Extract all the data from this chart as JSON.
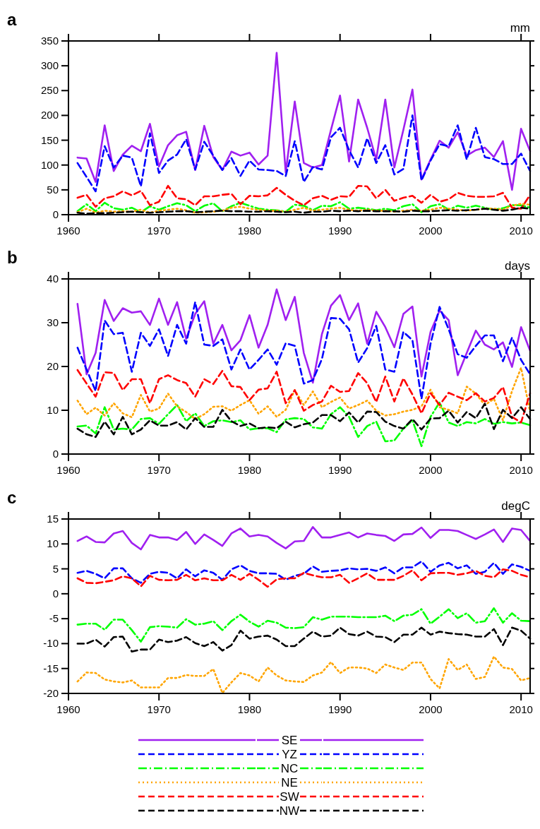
{
  "chart_data": [
    {
      "type": "line",
      "title": "a",
      "ylabel": "mm",
      "xlim": [
        1960,
        2011
      ],
      "xticks": [
        1960,
        1970,
        1980,
        1990,
        2000,
        2010
      ],
      "ylim": [
        0,
        350
      ],
      "yticks": [
        0,
        50,
        100,
        150,
        200,
        250,
        300,
        350
      ],
      "x": [
        1961,
        1962,
        1963,
        1964,
        1965,
        1966,
        1967,
        1968,
        1969,
        1970,
        1971,
        1972,
        1973,
        1974,
        1975,
        1976,
        1977,
        1978,
        1979,
        1980,
        1981,
        1982,
        1983,
        1984,
        1985,
        1986,
        1987,
        1988,
        1989,
        1990,
        1991,
        1992,
        1993,
        1994,
        1995,
        1996,
        1997,
        1998,
        1999,
        2000,
        2001,
        2002,
        2003,
        2004,
        2005,
        2006,
        2007,
        2008,
        2009,
        2010,
        2011
      ],
      "series": [
        {
          "color": "#a020f0",
          "line_style": "solid",
          "values": [
            115,
            113,
            66,
            180,
            88,
            121,
            139,
            128,
            183,
            97,
            140,
            160,
            167,
            90,
            179,
            116,
            90,
            127,
            119,
            125,
            101,
            119,
            326,
            85,
            228,
            104,
            95,
            100,
            171,
            240,
            107,
            232,
            175,
            111,
            232,
            95,
            171,
            252,
            71,
            111,
            149,
            135,
            166,
            119,
            130,
            135,
            116,
            148,
            50,
            173,
            128
          ]
        },
        {
          "color": "#0000ff",
          "line_style": "dashed",
          "values": [
            104,
            76,
            47,
            138,
            95,
            119,
            115,
            57,
            164,
            84,
            109,
            121,
            152,
            91,
            147,
            119,
            90,
            114,
            78,
            109,
            91,
            90,
            88,
            78,
            148,
            66,
            96,
            91,
            156,
            175,
            130,
            95,
            154,
            104,
            140,
            81,
            92,
            200,
            69,
            109,
            142,
            138,
            180,
            111,
            175,
            116,
            112,
            102,
            102,
            123,
            88
          ]
        },
        {
          "color": "#00ff00",
          "line_style": "dashdot",
          "values": [
            7,
            21,
            7,
            24,
            13,
            10,
            14,
            5,
            17,
            10,
            17,
            23,
            19,
            7,
            18,
            23,
            7,
            17,
            24,
            18,
            12,
            10,
            9,
            6,
            20,
            18,
            9,
            18,
            17,
            25,
            12,
            14,
            12,
            9,
            12,
            9,
            17,
            21,
            5,
            17,
            21,
            10,
            18,
            14,
            18,
            14,
            10,
            13,
            19,
            19,
            14
          ]
        },
        {
          "color": "#ffa500",
          "line_style": "dotted",
          "values": [
            5,
            12,
            4,
            8,
            6,
            7,
            6,
            10,
            4,
            8,
            10,
            12,
            9,
            4,
            5,
            6,
            8,
            14,
            16,
            12,
            10,
            8,
            8,
            6,
            10,
            14,
            8,
            10,
            12,
            14,
            10,
            8,
            10,
            8,
            8,
            6,
            8,
            10,
            8,
            10,
            14,
            12,
            10,
            8,
            10,
            12,
            12,
            10,
            18,
            22,
            20
          ]
        },
        {
          "color": "#ff0000",
          "line_style": "dashed",
          "values": [
            34,
            40,
            16,
            33,
            37,
            47,
            39,
            48,
            19,
            26,
            58,
            33,
            31,
            19,
            37,
            37,
            40,
            42,
            21,
            38,
            37,
            39,
            54,
            40,
            28,
            19,
            33,
            38,
            30,
            37,
            36,
            58,
            57,
            33,
            50,
            28,
            34,
            38,
            24,
            40,
            26,
            31,
            44,
            38,
            36,
            36,
            37,
            44,
            14,
            12,
            40
          ]
        },
        {
          "color": "#000000",
          "line_style": "dashed",
          "values": [
            4,
            2,
            3,
            3,
            4,
            5,
            6,
            5,
            4,
            5,
            6,
            7,
            7,
            5,
            6,
            7,
            8,
            7,
            7,
            6,
            6,
            7,
            6,
            5,
            6,
            4,
            6,
            6,
            8,
            7,
            8,
            7,
            8,
            7,
            7,
            7,
            6,
            8,
            7,
            7,
            8,
            9,
            8,
            9,
            10,
            12,
            10,
            8,
            10,
            14,
            12
          ]
        }
      ]
    },
    {
      "type": "line",
      "title": "b",
      "ylabel": "days",
      "xlim": [
        1960,
        2011
      ],
      "xticks": [
        1960,
        1970,
        1980,
        1990,
        2000,
        2010
      ],
      "ylim": [
        0,
        40
      ],
      "yticks": [
        0,
        10,
        20,
        30,
        40
      ],
      "x": [
        1961,
        1962,
        1963,
        1964,
        1965,
        1966,
        1967,
        1968,
        1969,
        1970,
        1971,
        1972,
        1973,
        1974,
        1975,
        1976,
        1977,
        1978,
        1979,
        1980,
        1981,
        1982,
        1983,
        1984,
        1985,
        1986,
        1987,
        1988,
        1989,
        1990,
        1991,
        1992,
        1993,
        1994,
        1995,
        1996,
        1997,
        1998,
        1999,
        2000,
        2001,
        2002,
        2003,
        2004,
        2005,
        2006,
        2007,
        2008,
        2009,
        2010,
        2011
      ],
      "series": [
        {
          "color": "#a020f0",
          "line_style": "solid",
          "values": [
            34.3,
            18.2,
            23.1,
            35.2,
            30.4,
            33.3,
            32.3,
            32.6,
            29.5,
            35.5,
            29.5,
            34.7,
            26.3,
            32.0,
            34.9,
            25.2,
            29.5,
            23.7,
            26.0,
            31.7,
            24.3,
            29.5,
            37.6,
            30.6,
            35.9,
            23.1,
            16.3,
            27.4,
            33.9,
            36.3,
            30.6,
            34.4,
            25.2,
            32.5,
            29.0,
            24.4,
            32.0,
            33.7,
            17.7,
            27.9,
            32.8,
            30.6,
            18.0,
            23.1,
            28.2,
            25.0,
            23.9,
            25.5,
            19.9,
            29.0,
            23.6
          ]
        },
        {
          "color": "#0000ff",
          "line_style": "dashed",
          "values": [
            24.3,
            19.3,
            14.4,
            30.5,
            27.4,
            27.7,
            18.8,
            27.7,
            24.7,
            28.5,
            22.4,
            29.5,
            25.2,
            34.7,
            25.0,
            24.7,
            26.2,
            19.3,
            23.9,
            19.3,
            21.5,
            23.9,
            20.4,
            25.3,
            24.7,
            16.1,
            16.9,
            21.7,
            31.1,
            30.9,
            28.5,
            20.9,
            24.2,
            29.3,
            19.3,
            18.8,
            27.9,
            26.0,
            12.6,
            25.2,
            33.6,
            28.5,
            22.8,
            22.0,
            24.7,
            27.1,
            27.1,
            21.2,
            26.6,
            21.5,
            18.2
          ]
        },
        {
          "color": "#00ff00",
          "line_style": "dashdot",
          "values": [
            6.3,
            6.5,
            4.7,
            10.7,
            5.6,
            5.8,
            5.6,
            8.0,
            8.2,
            6.9,
            9.1,
            11.2,
            7.5,
            9.3,
            6.4,
            7.5,
            7.7,
            7.3,
            7.7,
            5.6,
            5.9,
            5.9,
            5.0,
            7.9,
            8.2,
            8.0,
            6.1,
            5.8,
            9.1,
            10.7,
            8.5,
            3.9,
            6.4,
            7.4,
            2.9,
            3.1,
            5.8,
            7.7,
            1.8,
            8.5,
            11.8,
            7.2,
            6.4,
            7.3,
            7.0,
            8.0,
            6.9,
            7.3,
            7.0,
            7.2,
            6.6
          ]
        },
        {
          "color": "#ffa500",
          "line_style": "dotted",
          "values": [
            12.2,
            9.1,
            10.6,
            8.8,
            11.6,
            9.3,
            8.4,
            13.5,
            9.7,
            10.4,
            13.8,
            10.9,
            9.6,
            8.0,
            9.1,
            10.8,
            10.9,
            9.9,
            11.2,
            12.3,
            9.2,
            10.9,
            8.5,
            10.1,
            14.6,
            11.2,
            14.3,
            10.7,
            11.9,
            12.9,
            10.4,
            11.2,
            12.2,
            9.9,
            8.8,
            9.1,
            9.7,
            10.1,
            10.9,
            14.7,
            10.7,
            10.1,
            9.3,
            15.4,
            13.8,
            11.2,
            12.6,
            7.7,
            14.4,
            19.7,
            9.6
          ]
        },
        {
          "color": "#ff0000",
          "line_style": "dashed",
          "values": [
            19.2,
            16.1,
            13.1,
            18.7,
            18.5,
            14.6,
            17.1,
            17.1,
            11.6,
            17.1,
            18.0,
            16.9,
            16.2,
            13.1,
            17.1,
            16.0,
            19.0,
            15.5,
            15.3,
            12.3,
            14.7,
            15.0,
            18.8,
            11.6,
            14.6,
            9.9,
            11.2,
            12.0,
            15.6,
            14.2,
            14.4,
            18.5,
            16.2,
            11.9,
            17.7,
            12.0,
            17.3,
            13.6,
            9.3,
            13.9,
            11.2,
            14.0,
            13.1,
            12.3,
            13.9,
            12.0,
            12.8,
            15.3,
            8.5,
            7.2,
            13.9
          ]
        },
        {
          "color": "#000000",
          "line_style": "dashed",
          "values": [
            5.8,
            4.5,
            3.9,
            7.4,
            4.5,
            8.5,
            4.5,
            5.6,
            7.7,
            6.5,
            6.5,
            7.3,
            5.6,
            8.2,
            6.2,
            6.2,
            10.1,
            7.5,
            6.4,
            7.0,
            5.9,
            6.1,
            5.9,
            7.4,
            6.1,
            6.8,
            7.2,
            8.9,
            8.9,
            7.5,
            9.5,
            7.2,
            9.7,
            9.6,
            7.4,
            6.4,
            5.8,
            8.0,
            5.6,
            8.1,
            8.2,
            9.9,
            7.2,
            9.6,
            8.2,
            11.5,
            5.7,
            10.1,
            8.2,
            10.7,
            8.0
          ]
        }
      ]
    },
    {
      "type": "line",
      "title": "c",
      "ylabel": "degC",
      "xlim": [
        1960,
        2011
      ],
      "xticks": [
        1960,
        1970,
        1980,
        1990,
        2000,
        2010
      ],
      "ylim": [
        -20,
        15
      ],
      "yticks": [
        -20,
        -15,
        -10,
        -5,
        0,
        5,
        10,
        15
      ],
      "legend": "bottom",
      "x": [
        1961,
        1962,
        1963,
        1964,
        1965,
        1966,
        1967,
        1968,
        1969,
        1970,
        1971,
        1972,
        1973,
        1974,
        1975,
        1976,
        1977,
        1978,
        1979,
        1980,
        1981,
        1982,
        1983,
        1984,
        1985,
        1986,
        1987,
        1988,
        1989,
        1990,
        1991,
        1992,
        1993,
        1994,
        1995,
        1996,
        1997,
        1998,
        1999,
        2000,
        2001,
        2002,
        2003,
        2004,
        2005,
        2006,
        2007,
        2008,
        2009,
        2010,
        2011
      ],
      "series": [
        {
          "name": "SE",
          "color": "#a020f0",
          "line_style": "solid",
          "values": [
            10.6,
            11.5,
            10.4,
            10.3,
            12.1,
            12.6,
            10.2,
            8.9,
            11.8,
            11.3,
            11.3,
            10.8,
            12.4,
            10.0,
            11.9,
            10.8,
            9.6,
            12.1,
            13.1,
            11.5,
            11.8,
            11.5,
            10.2,
            9.1,
            10.5,
            10.6,
            13.4,
            11.3,
            11.3,
            11.8,
            12.3,
            11.3,
            12.1,
            11.8,
            11.6,
            10.6,
            11.9,
            12.0,
            13.3,
            11.2,
            12.8,
            12.8,
            12.6,
            11.8,
            11.0,
            11.9,
            12.9,
            10.4,
            13.1,
            12.8,
            10.6
          ]
        },
        {
          "name": "YZ",
          "color": "#0000ff",
          "line_style": "dashed",
          "values": [
            4.2,
            4.6,
            4.0,
            3.1,
            5.1,
            5.1,
            3.1,
            2.2,
            4.0,
            4.4,
            4.2,
            3.1,
            4.9,
            3.5,
            4.7,
            4.2,
            2.8,
            4.9,
            5.7,
            4.6,
            4.1,
            4.1,
            4.0,
            2.8,
            3.6,
            4.0,
            5.5,
            4.4,
            4.6,
            4.7,
            5.1,
            4.9,
            5.0,
            4.6,
            5.3,
            4.1,
            5.3,
            5.3,
            6.5,
            4.4,
            5.7,
            6.2,
            5.1,
            5.7,
            4.0,
            4.4,
            6.2,
            4.0,
            5.9,
            5.4,
            4.6
          ]
        },
        {
          "name": "NC",
          "color": "#00ff00",
          "line_style": "dashdot",
          "values": [
            -6.2,
            -6.0,
            -6.0,
            -7.2,
            -5.2,
            -5.2,
            -7.3,
            -9.6,
            -6.7,
            -6.5,
            -6.6,
            -6.8,
            -5.1,
            -6.2,
            -6.0,
            -5.5,
            -7.3,
            -5.5,
            -4.2,
            -5.6,
            -6.6,
            -5.4,
            -5.8,
            -6.8,
            -6.9,
            -6.7,
            -4.7,
            -5.2,
            -4.6,
            -4.6,
            -4.6,
            -4.7,
            -4.7,
            -4.7,
            -4.4,
            -5.5,
            -4.4,
            -4.2,
            -3.1,
            -6.0,
            -4.6,
            -3.1,
            -4.9,
            -3.9,
            -5.8,
            -5.5,
            -2.9,
            -5.8,
            -3.9,
            -5.4,
            -5.5
          ]
        },
        {
          "name": "NE",
          "color": "#ffa500",
          "line_style": "dotted",
          "values": [
            -17.6,
            -15.8,
            -15.9,
            -17.2,
            -17.6,
            -17.8,
            -17.4,
            -18.8,
            -18.8,
            -18.8,
            -16.9,
            -16.9,
            -16.3,
            -16.5,
            -16.5,
            -15.1,
            -19.9,
            -17.8,
            -15.9,
            -16.4,
            -17.6,
            -14.8,
            -16.4,
            -17.4,
            -17.6,
            -17.7,
            -16.4,
            -15.8,
            -13.7,
            -15.9,
            -14.8,
            -14.8,
            -15.0,
            -15.9,
            -14.2,
            -14.8,
            -15.3,
            -13.8,
            -13.8,
            -17.1,
            -19.0,
            -13.1,
            -15.3,
            -14.2,
            -17.1,
            -16.7,
            -12.6,
            -14.8,
            -15.1,
            -17.4,
            -16.9
          ]
        },
        {
          "name": "SW",
          "color": "#ff0000",
          "line_style": "dashed",
          "values": [
            3.1,
            2.2,
            2.1,
            2.4,
            2.7,
            3.5,
            3.1,
            1.5,
            3.6,
            2.8,
            2.7,
            2.8,
            3.8,
            2.7,
            3.1,
            2.7,
            2.7,
            3.8,
            2.8,
            4.0,
            2.8,
            1.4,
            2.9,
            3.1,
            3.1,
            4.2,
            3.7,
            3.3,
            3.3,
            3.8,
            2.2,
            3.1,
            4.1,
            2.8,
            2.8,
            2.8,
            3.6,
            4.7,
            2.7,
            4.1,
            4.2,
            4.2,
            3.8,
            4.1,
            4.6,
            3.6,
            3.3,
            4.9,
            4.6,
            3.8,
            3.3
          ]
        },
        {
          "name": "NW",
          "color": "#000000",
          "line_style": "dashed",
          "values": [
            -10.0,
            -10.0,
            -9.2,
            -10.6,
            -8.7,
            -8.6,
            -11.6,
            -11.2,
            -11.2,
            -9.2,
            -9.7,
            -9.4,
            -8.7,
            -9.9,
            -10.5,
            -9.7,
            -11.4,
            -10.3,
            -7.4,
            -9.0,
            -8.6,
            -8.4,
            -9.2,
            -10.5,
            -10.5,
            -9.0,
            -7.6,
            -8.6,
            -8.4,
            -6.8,
            -8.1,
            -8.4,
            -7.6,
            -8.6,
            -8.7,
            -9.7,
            -8.2,
            -8.2,
            -6.8,
            -8.2,
            -7.6,
            -7.9,
            -8.1,
            -8.2,
            -8.6,
            -8.6,
            -7.1,
            -10.3,
            -6.8,
            -7.4,
            -9.0
          ]
        }
      ]
    }
  ]
}
